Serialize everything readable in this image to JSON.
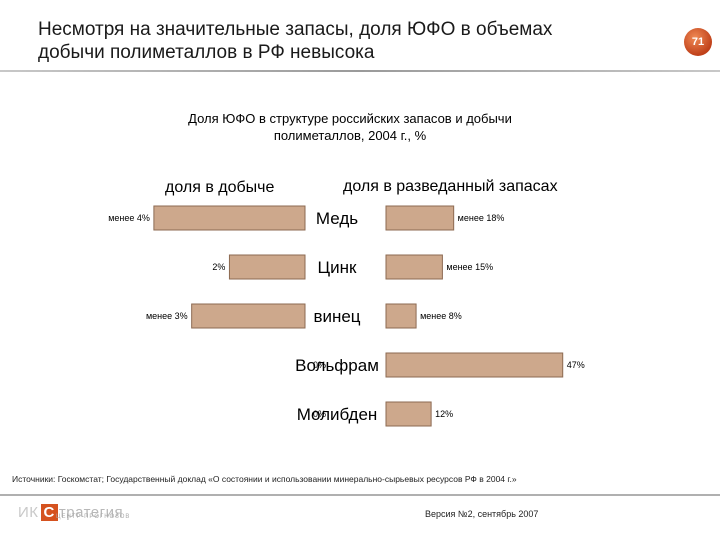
{
  "slide": {
    "title_line1": "Несмотря на значительные запасы, доля ЮФО в объемах",
    "title_line2": "добычи полиметаллов в РФ невысока",
    "page_number": "71",
    "source": "Источники: Госкомстат; Государственный доклад «О состоянии и использовании минерально-сырьевых ресурсов РФ в 2004 г.»",
    "version": "Версия №2, сентябрь 2007",
    "logo_prefix": "ИК",
    "logo_mark": "С",
    "logo_text": "тратегия",
    "logo_tagline": "ЦЕНТР ПРОГНОЗОВ"
  },
  "colors": {
    "bar": "#cda88c",
    "bar_edge": "#8c6a52",
    "accent": "#d5521f"
  },
  "chart_data": {
    "type": "bar",
    "orientation": "horizontal-butterfly",
    "title": "Доля ЮФО в структуре российских запасов и добычи полиметаллов, 2004 г., %",
    "title_line1": "Доля ЮФО в структуре российских запасов и добычи",
    "title_line2": "полиметаллов, 2004 г., %",
    "categories": [
      "Медь",
      "Цинк",
      "винец",
      "Вольфрам",
      "Молибден"
    ],
    "series": [
      {
        "name": "доля в добыче",
        "side": "left",
        "values": [
          4,
          2,
          3,
          0,
          0
        ],
        "labels": [
          "менее 4%",
          "2%",
          "менее 3%",
          "0%",
          "0%"
        ]
      },
      {
        "name": "доля в разведанный запасах",
        "side": "right",
        "values": [
          18,
          15,
          8,
          47,
          12
        ],
        "labels": [
          "менее 18%",
          "менее 15%",
          "менее 8%",
          "47%",
          "12%"
        ]
      }
    ],
    "xlim_left": [
      0,
      4.5
    ],
    "xlim_right": [
      0,
      50
    ]
  }
}
